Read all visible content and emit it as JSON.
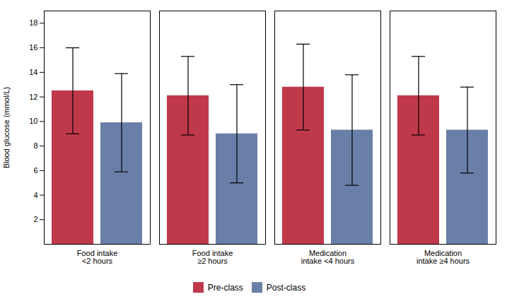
{
  "chart_data": {
    "type": "bar",
    "categories": [
      "Food intake\n<2 hours",
      "Food intake\n≥2 hours",
      "Medication\nintake <4 hours",
      "Medication\nintake ≥4 hours"
    ],
    "series": [
      {
        "name": "Pre-class",
        "color": "#c0394b",
        "values": [
          12.5,
          12.1,
          12.8,
          12.1
        ],
        "errors": [
          3.5,
          3.2,
          3.5,
          3.2
        ]
      },
      {
        "name": "Post-class",
        "color": "#6a7fa8",
        "values": [
          9.9,
          9.0,
          9.3,
          9.3
        ],
        "errors": [
          4.0,
          4.0,
          4.5,
          3.5
        ]
      }
    ],
    "ylim": [
      0,
      19
    ],
    "yticks": [
      2,
      4,
      6,
      8,
      10,
      12,
      14,
      16,
      18
    ],
    "ylabel": "Blood glucose (mmol/L)",
    "legend": "bottom",
    "grid": false
  }
}
